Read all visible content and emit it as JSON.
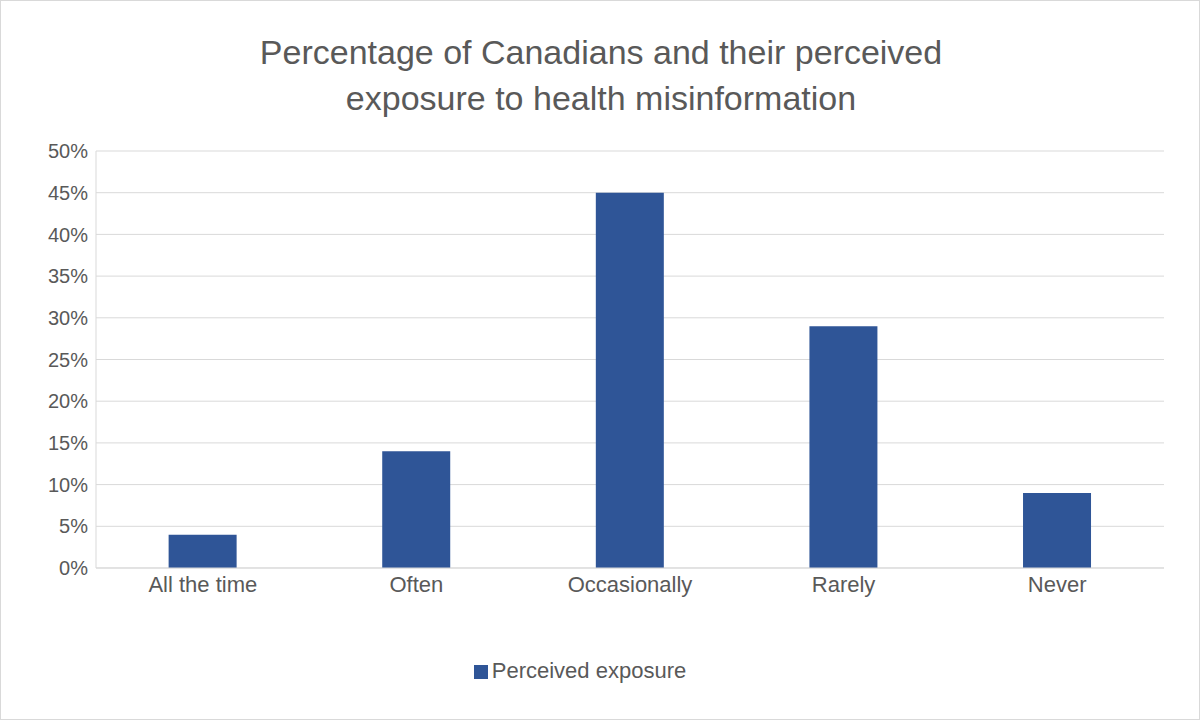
{
  "chart_data": {
    "type": "bar",
    "title": "Percentage of Canadians and their perceived exposure to health misinformation",
    "categories": [
      "All the time",
      "Often",
      "Occasionally",
      "Rarely",
      "Never"
    ],
    "series": [
      {
        "name": "Perceived exposure",
        "color": "#2f5597",
        "values": [
          4,
          14,
          45,
          29,
          9
        ]
      }
    ],
    "ylim": [
      0,
      50
    ],
    "yticks": [
      {
        "value": 0,
        "label": "0%"
      },
      {
        "value": 5,
        "label": "5%"
      },
      {
        "value": 10,
        "label": "10%"
      },
      {
        "value": 15,
        "label": "15%"
      },
      {
        "value": 20,
        "label": "20%"
      },
      {
        "value": 25,
        "label": "25%"
      },
      {
        "value": 30,
        "label": "30%"
      },
      {
        "value": 35,
        "label": "35%"
      },
      {
        "value": 40,
        "label": "40%"
      },
      {
        "value": 45,
        "label": "45%"
      },
      {
        "value": 50,
        "label": "50%"
      }
    ],
    "grid": true,
    "legend": "bottom"
  }
}
